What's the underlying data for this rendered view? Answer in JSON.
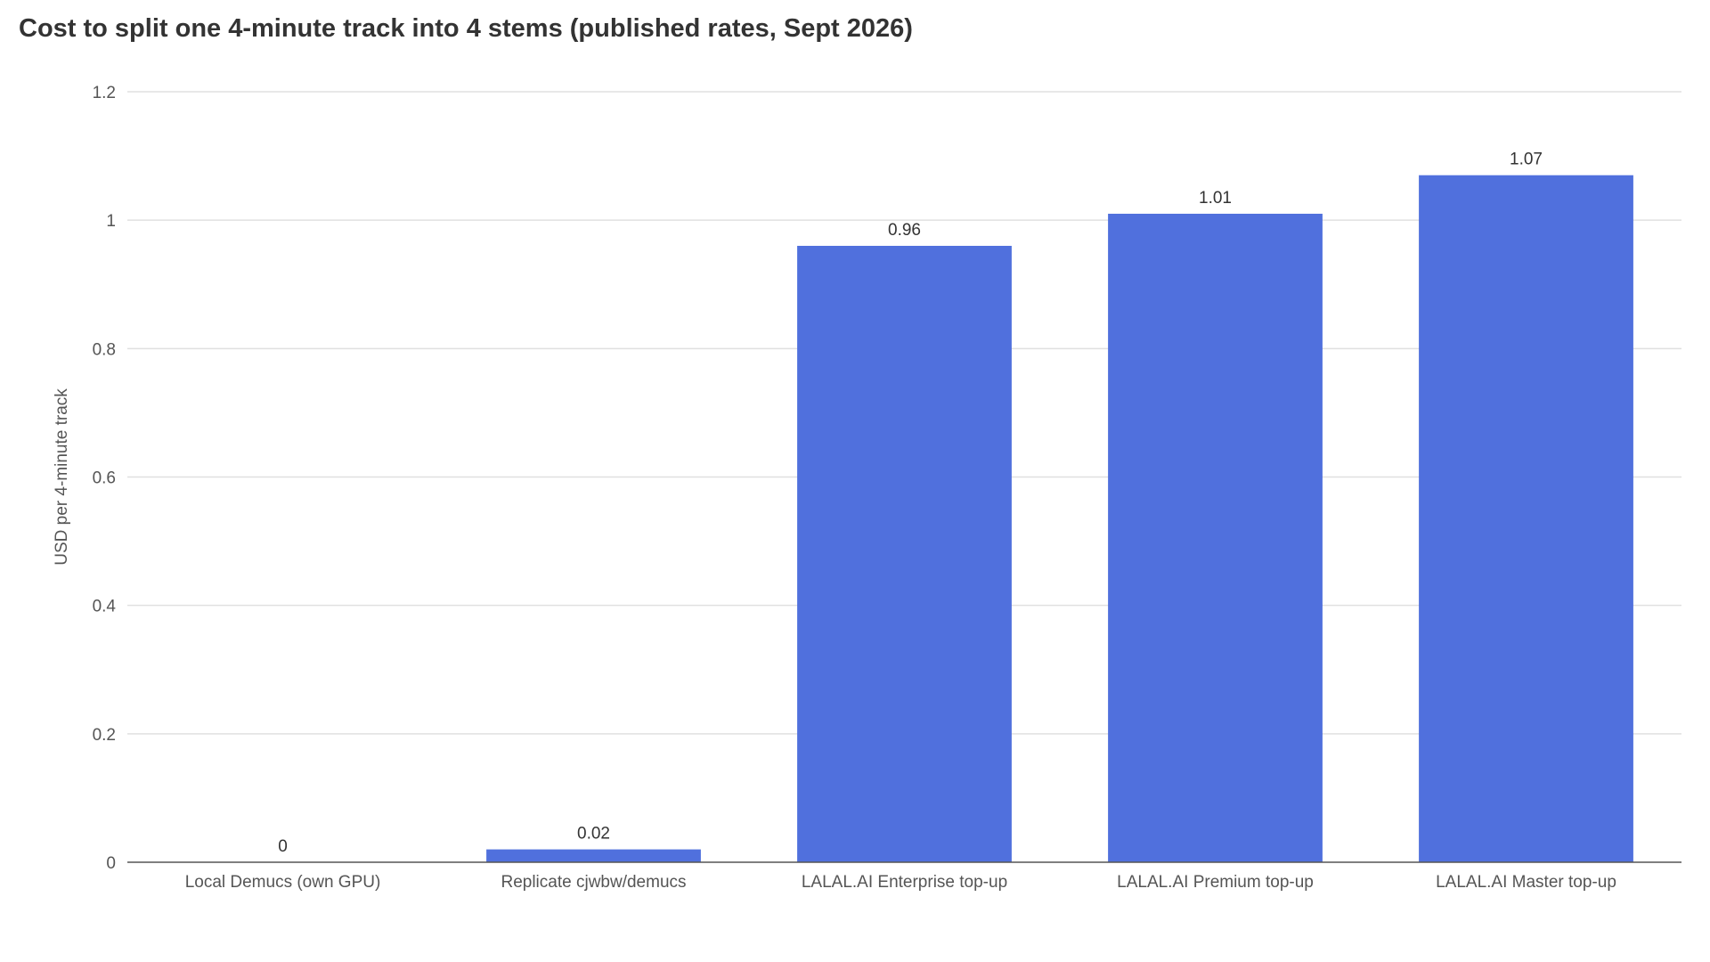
{
  "chart_data": {
    "type": "bar",
    "title": "Cost to split one 4-minute track into 4 stems (published rates, Sept 2026)",
    "xlabel": "",
    "ylabel": "USD per 4-minute track",
    "categories": [
      "Local Demucs (own GPU)",
      "Replicate cjwbw/demucs",
      "LALAL.AI Enterprise top-up",
      "LALAL.AI Premium top-up",
      "LALAL.AI Master top-up"
    ],
    "values": [
      0,
      0.02,
      0.96,
      1.01,
      1.07
    ],
    "data_labels": [
      "0",
      "0.02",
      "0.96",
      "1.01",
      "1.07"
    ],
    "ylim": [
      0,
      1.2
    ],
    "yticks": [
      0,
      0.2,
      0.4,
      0.6,
      0.8,
      1,
      1.2
    ],
    "ytick_labels": [
      "0",
      "0.2",
      "0.4",
      "0.6",
      "0.8",
      "1",
      "1.2"
    ],
    "grid": true,
    "legend": "none",
    "colors": {
      "bar": "#5070DD",
      "grid": "#E0E0E0",
      "axis": "#555555"
    }
  }
}
